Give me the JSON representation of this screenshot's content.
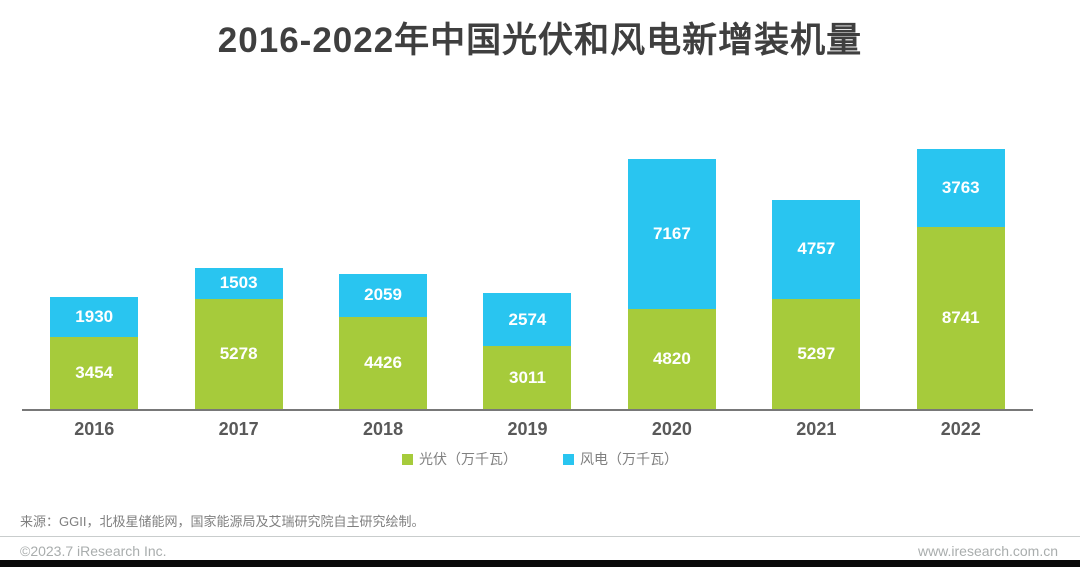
{
  "title": "2016-2022年中国光伏和风电新增装机量",
  "chart_data": {
    "type": "bar",
    "stacked": true,
    "title": "2016-2022年中国光伏和风电新增装机量",
    "categories": [
      "2016",
      "2017",
      "2018",
      "2019",
      "2020",
      "2021",
      "2022"
    ],
    "series": [
      {
        "key": "solar",
        "name": "光伏（万千瓦）",
        "color": "#a6cb3b",
        "values": [
          3454,
          5278,
          4426,
          3011,
          4820,
          5297,
          8741
        ]
      },
      {
        "key": "wind",
        "name": "风电（万千瓦）",
        "color": "#29c5f0",
        "values": [
          1930,
          1503,
          2059,
          2574,
          7167,
          4757,
          3763
        ]
      }
    ],
    "totals": [
      5384,
      6781,
      6485,
      5585,
      11987,
      10054,
      12504
    ],
    "unit": "万千瓦",
    "xlabel": "",
    "ylabel": "",
    "ylim": [
      0,
      12960
    ],
    "grid": false,
    "legend_position": "bottom",
    "value_labels": "inside-white"
  },
  "legend": {
    "solar_label": "光伏（万千瓦）",
    "wind_label": "风电（万千瓦）"
  },
  "source_note": "来源：GGII，北极星储能网，国家能源局及艾瑞研究院自主研究绘制。",
  "footer": {
    "left": "©2023.7 iResearch Inc.",
    "right": "www.iresearch.com.cn"
  },
  "colors": {
    "solar": "#a6cb3b",
    "wind": "#29c5f0",
    "title_text": "#3f3f3f",
    "axis_line": "#787878",
    "year_text": "#595959",
    "value_text": "#ffffff",
    "footer_text": "#a9adad",
    "bottom_bar": "#0a0a0a"
  }
}
